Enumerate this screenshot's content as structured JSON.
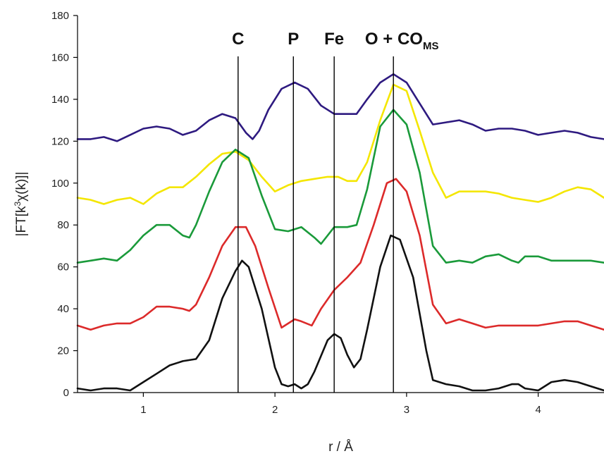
{
  "chart_data": {
    "type": "line",
    "title": "",
    "xlabel": "r / Å",
    "ylabel_parts": [
      "|FT[k",
      "3",
      "χ(k)]|"
    ],
    "xlim": [
      0.5,
      4.5
    ],
    "ylim": [
      0,
      180
    ],
    "xticks": [
      1,
      2,
      3,
      4
    ],
    "yticks": [
      0,
      20,
      40,
      60,
      80,
      100,
      120,
      140,
      160,
      180
    ],
    "grid": false,
    "legend": "none",
    "markers": [
      {
        "label": "C",
        "sub": "",
        "x": 1.72
      },
      {
        "label": "P",
        "sub": "",
        "x": 2.14
      },
      {
        "label": "Fe",
        "sub": "",
        "x": 2.45
      },
      {
        "label": "O + CO",
        "sub": "MS",
        "x": 2.9
      }
    ],
    "series": [
      {
        "color": "#2e1a80",
        "points": [
          [
            0.5,
            121
          ],
          [
            0.6,
            121
          ],
          [
            0.7,
            122
          ],
          [
            0.8,
            120
          ],
          [
            0.9,
            123
          ],
          [
            1.0,
            126
          ],
          [
            1.1,
            127
          ],
          [
            1.2,
            126
          ],
          [
            1.3,
            123
          ],
          [
            1.4,
            125
          ],
          [
            1.5,
            130
          ],
          [
            1.6,
            133
          ],
          [
            1.7,
            131
          ],
          [
            1.78,
            124
          ],
          [
            1.83,
            121
          ],
          [
            1.88,
            125
          ],
          [
            1.95,
            135
          ],
          [
            2.05,
            145
          ],
          [
            2.15,
            148
          ],
          [
            2.25,
            145
          ],
          [
            2.35,
            137
          ],
          [
            2.45,
            133
          ],
          [
            2.55,
            133
          ],
          [
            2.62,
            133
          ],
          [
            2.7,
            140
          ],
          [
            2.8,
            148
          ],
          [
            2.9,
            152
          ],
          [
            3.0,
            148
          ],
          [
            3.1,
            138
          ],
          [
            3.2,
            128
          ],
          [
            3.3,
            129
          ],
          [
            3.4,
            130
          ],
          [
            3.5,
            128
          ],
          [
            3.6,
            125
          ],
          [
            3.7,
            126
          ],
          [
            3.8,
            126
          ],
          [
            3.9,
            125
          ],
          [
            4.0,
            123
          ],
          [
            4.1,
            124
          ],
          [
            4.2,
            125
          ],
          [
            4.3,
            124
          ],
          [
            4.4,
            122
          ],
          [
            4.5,
            121
          ]
        ]
      },
      {
        "color": "#f4e600",
        "points": [
          [
            0.5,
            93
          ],
          [
            0.6,
            92
          ],
          [
            0.7,
            90
          ],
          [
            0.8,
            92
          ],
          [
            0.9,
            93
          ],
          [
            1.0,
            90
          ],
          [
            1.1,
            95
          ],
          [
            1.2,
            98
          ],
          [
            1.3,
            98
          ],
          [
            1.4,
            103
          ],
          [
            1.5,
            109
          ],
          [
            1.6,
            114
          ],
          [
            1.7,
            115
          ],
          [
            1.8,
            111
          ],
          [
            1.9,
            103
          ],
          [
            2.0,
            96
          ],
          [
            2.1,
            99
          ],
          [
            2.2,
            101
          ],
          [
            2.3,
            102
          ],
          [
            2.4,
            103
          ],
          [
            2.48,
            103
          ],
          [
            2.55,
            101
          ],
          [
            2.62,
            101
          ],
          [
            2.7,
            110
          ],
          [
            2.8,
            130
          ],
          [
            2.9,
            147
          ],
          [
            3.0,
            144
          ],
          [
            3.1,
            125
          ],
          [
            3.2,
            105
          ],
          [
            3.3,
            93
          ],
          [
            3.4,
            96
          ],
          [
            3.5,
            96
          ],
          [
            3.6,
            96
          ],
          [
            3.7,
            95
          ],
          [
            3.8,
            93
          ],
          [
            3.9,
            92
          ],
          [
            4.0,
            91
          ],
          [
            4.1,
            93
          ],
          [
            4.2,
            96
          ],
          [
            4.3,
            98
          ],
          [
            4.4,
            97
          ],
          [
            4.5,
            93
          ]
        ]
      },
      {
        "color": "#1a9a3a",
        "points": [
          [
            0.5,
            62
          ],
          [
            0.6,
            63
          ],
          [
            0.7,
            64
          ],
          [
            0.8,
            63
          ],
          [
            0.9,
            68
          ],
          [
            1.0,
            75
          ],
          [
            1.1,
            80
          ],
          [
            1.2,
            80
          ],
          [
            1.3,
            75
          ],
          [
            1.35,
            74
          ],
          [
            1.4,
            80
          ],
          [
            1.5,
            96
          ],
          [
            1.6,
            110
          ],
          [
            1.7,
            116
          ],
          [
            1.8,
            112
          ],
          [
            1.9,
            94
          ],
          [
            2.0,
            78
          ],
          [
            2.1,
            77
          ],
          [
            2.2,
            79
          ],
          [
            2.3,
            74
          ],
          [
            2.35,
            71
          ],
          [
            2.45,
            79
          ],
          [
            2.55,
            79
          ],
          [
            2.62,
            80
          ],
          [
            2.7,
            97
          ],
          [
            2.8,
            127
          ],
          [
            2.9,
            135
          ],
          [
            3.0,
            128
          ],
          [
            3.1,
            105
          ],
          [
            3.2,
            70
          ],
          [
            3.3,
            62
          ],
          [
            3.4,
            63
          ],
          [
            3.5,
            62
          ],
          [
            3.6,
            65
          ],
          [
            3.7,
            66
          ],
          [
            3.8,
            63
          ],
          [
            3.85,
            62
          ],
          [
            3.9,
            65
          ],
          [
            4.0,
            65
          ],
          [
            4.1,
            63
          ],
          [
            4.2,
            63
          ],
          [
            4.3,
            63
          ],
          [
            4.4,
            63
          ],
          [
            4.5,
            62
          ]
        ]
      },
      {
        "color": "#dc2a2a",
        "points": [
          [
            0.5,
            32
          ],
          [
            0.6,
            30
          ],
          [
            0.7,
            32
          ],
          [
            0.8,
            33
          ],
          [
            0.9,
            33
          ],
          [
            1.0,
            36
          ],
          [
            1.1,
            41
          ],
          [
            1.2,
            41
          ],
          [
            1.3,
            40
          ],
          [
            1.35,
            39
          ],
          [
            1.4,
            42
          ],
          [
            1.5,
            55
          ],
          [
            1.6,
            70
          ],
          [
            1.7,
            79
          ],
          [
            1.78,
            79
          ],
          [
            1.85,
            70
          ],
          [
            1.95,
            50
          ],
          [
            2.05,
            31
          ],
          [
            2.15,
            35
          ],
          [
            2.2,
            34
          ],
          [
            2.28,
            32
          ],
          [
            2.35,
            40
          ],
          [
            2.45,
            49
          ],
          [
            2.55,
            55
          ],
          [
            2.65,
            62
          ],
          [
            2.75,
            80
          ],
          [
            2.85,
            100
          ],
          [
            2.92,
            102
          ],
          [
            3.0,
            96
          ],
          [
            3.1,
            75
          ],
          [
            3.2,
            42
          ],
          [
            3.3,
            33
          ],
          [
            3.4,
            35
          ],
          [
            3.5,
            33
          ],
          [
            3.6,
            31
          ],
          [
            3.7,
            32
          ],
          [
            3.8,
            32
          ],
          [
            3.9,
            32
          ],
          [
            4.0,
            32
          ],
          [
            4.1,
            33
          ],
          [
            4.2,
            34
          ],
          [
            4.3,
            34
          ],
          [
            4.4,
            32
          ],
          [
            4.5,
            30
          ]
        ]
      },
      {
        "color": "#111111",
        "points": [
          [
            0.5,
            2
          ],
          [
            0.6,
            1
          ],
          [
            0.7,
            2
          ],
          [
            0.8,
            2
          ],
          [
            0.9,
            1
          ],
          [
            1.0,
            5
          ],
          [
            1.1,
            9
          ],
          [
            1.2,
            13
          ],
          [
            1.3,
            15
          ],
          [
            1.4,
            16
          ],
          [
            1.5,
            25
          ],
          [
            1.6,
            45
          ],
          [
            1.7,
            58
          ],
          [
            1.75,
            63
          ],
          [
            1.8,
            60
          ],
          [
            1.9,
            40
          ],
          [
            2.0,
            12
          ],
          [
            2.05,
            4
          ],
          [
            2.1,
            3
          ],
          [
            2.15,
            4
          ],
          [
            2.2,
            2
          ],
          [
            2.25,
            4
          ],
          [
            2.3,
            10
          ],
          [
            2.4,
            25
          ],
          [
            2.45,
            28
          ],
          [
            2.5,
            26
          ],
          [
            2.55,
            18
          ],
          [
            2.6,
            12
          ],
          [
            2.65,
            16
          ],
          [
            2.7,
            30
          ],
          [
            2.8,
            60
          ],
          [
            2.88,
            75
          ],
          [
            2.95,
            73
          ],
          [
            3.05,
            55
          ],
          [
            3.15,
            20
          ],
          [
            3.2,
            6
          ],
          [
            3.3,
            4
          ],
          [
            3.4,
            3
          ],
          [
            3.5,
            1
          ],
          [
            3.6,
            1
          ],
          [
            3.7,
            2
          ],
          [
            3.8,
            4
          ],
          [
            3.85,
            4
          ],
          [
            3.9,
            2
          ],
          [
            4.0,
            1
          ],
          [
            4.1,
            5
          ],
          [
            4.2,
            6
          ],
          [
            4.3,
            5
          ],
          [
            4.4,
            3
          ],
          [
            4.5,
            1
          ]
        ]
      }
    ]
  }
}
